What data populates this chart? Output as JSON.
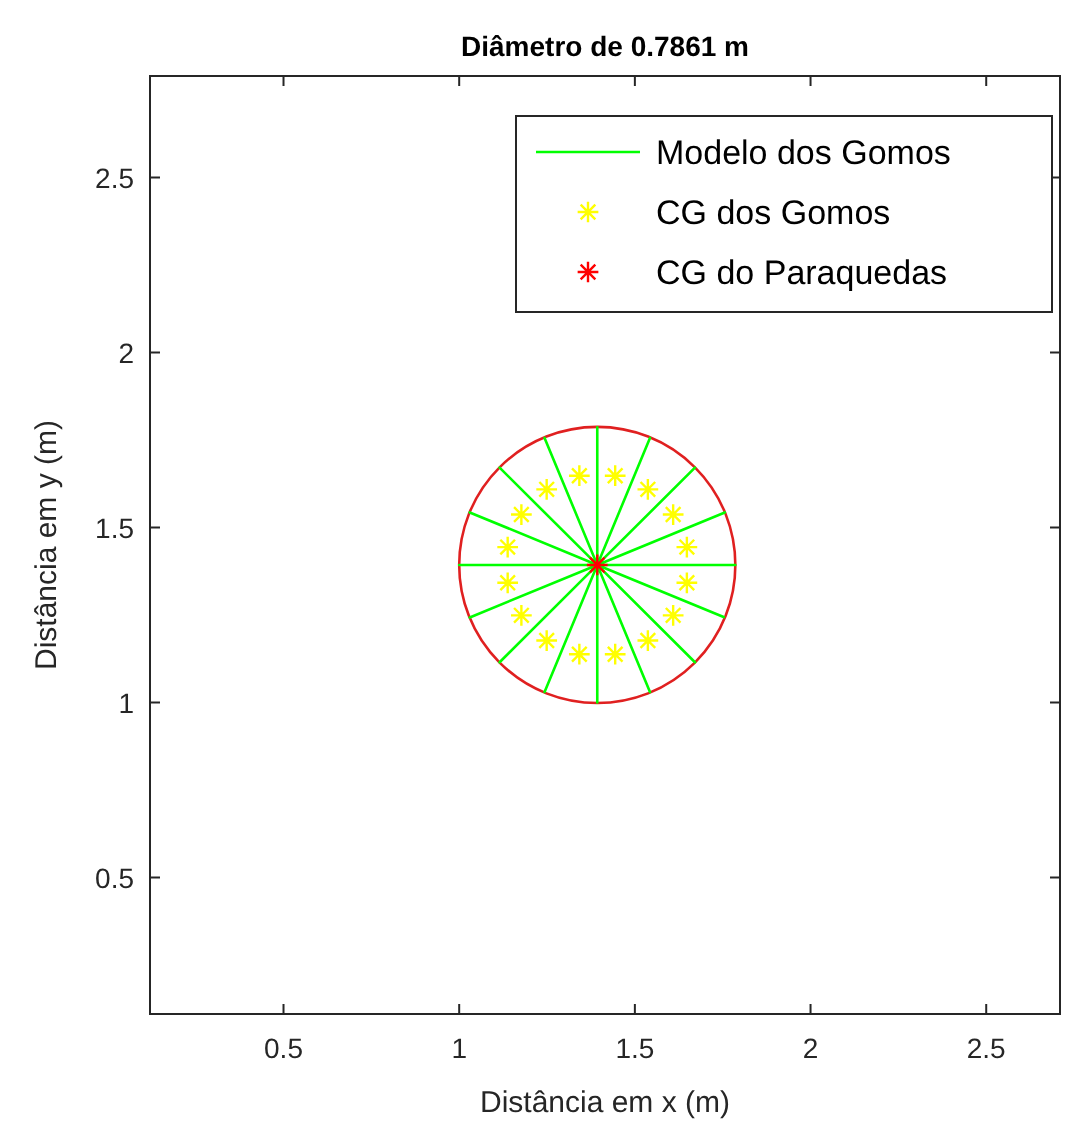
{
  "chart_data": {
    "type": "line",
    "title": "Diâmetro de 0.7861 m",
    "xlabel": "Distância em x (m)",
    "ylabel": "Distância em y (m)",
    "xlim": [
      0.12,
      2.71
    ],
    "ylim": [
      0.11,
      2.79
    ],
    "xticks": [
      0.5,
      1,
      1.5,
      2,
      2.5
    ],
    "yticks": [
      0.5,
      1,
      1.5,
      2,
      2.5
    ],
    "grid": false,
    "legend": "top right",
    "series": [
      {
        "name": "Modelo dos Gomos",
        "color": "#00ff00",
        "marker": "none",
        "x": [
          1.393,
          1.786,
          1.393,
          1.756,
          1.393,
          1.671,
          1.393,
          1.543,
          1.393,
          1.393,
          1.393,
          1.243,
          1.393,
          1.115,
          1.393,
          1.03,
          1.393,
          1.0,
          1.393,
          1.03,
          1.393,
          1.115,
          1.393,
          1.243,
          1.393,
          1.393,
          1.393,
          1.543,
          1.393,
          1.671,
          1.393,
          1.756
        ],
        "values": [
          1.393,
          1.393,
          1.393,
          1.543,
          1.393,
          1.671,
          1.393,
          1.756,
          1.393,
          1.786,
          1.393,
          1.756,
          1.393,
          1.671,
          1.393,
          1.543,
          1.393,
          1.393,
          1.393,
          1.243,
          1.393,
          1.115,
          1.393,
          1.03,
          1.393,
          1.0,
          1.393,
          1.03,
          1.393,
          1.115,
          1.393,
          1.243
        ]
      },
      {
        "name": "CG dos Gomos",
        "type": "scatter",
        "color": "#ffff00",
        "marker": "cross",
        "x": [
          1.648,
          1.609,
          1.537,
          1.444,
          1.342,
          1.249,
          1.177,
          1.138,
          1.138,
          1.177,
          1.249,
          1.342,
          1.444,
          1.537,
          1.609,
          1.648
        ],
        "values": [
          1.444,
          1.537,
          1.609,
          1.648,
          1.648,
          1.609,
          1.537,
          1.444,
          1.342,
          1.249,
          1.177,
          1.138,
          1.138,
          1.177,
          1.249,
          1.342
        ]
      },
      {
        "name": "CG do Paraquedas",
        "type": "scatter",
        "color": "#ff0000",
        "marker": "cross",
        "x": [
          1.393
        ],
        "values": [
          1.393
        ]
      }
    ]
  }
}
